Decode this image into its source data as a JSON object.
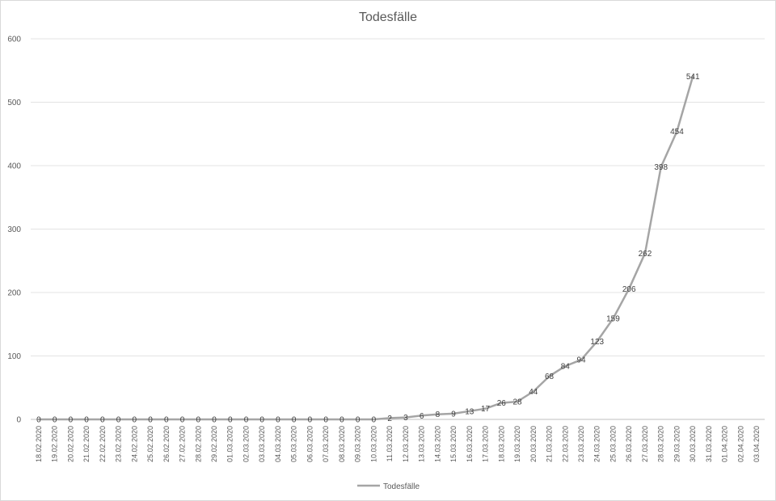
{
  "chart_data": {
    "type": "line",
    "title": "Todesfälle",
    "xlabel": "",
    "ylabel": "",
    "ylim": [
      0,
      600
    ],
    "yticks": [
      0,
      100,
      200,
      300,
      400,
      500,
      600
    ],
    "grid": true,
    "legend_position": "bottom",
    "categories": [
      "18.02.2020",
      "19.02.2020",
      "20.02.2020",
      "21.02.2020",
      "22.02.2020",
      "23.02.2020",
      "24.02.2020",
      "25.02.2020",
      "26.02.2020",
      "27.02.2020",
      "28.02.2020",
      "29.02.2020",
      "01.03.2020",
      "02.03.2020",
      "03.03.2020",
      "04.03.2020",
      "05.03.2020",
      "06.03.2020",
      "07.03.2020",
      "08.03.2020",
      "09.03.2020",
      "10.03.2020",
      "11.03.2020",
      "12.03.2020",
      "13.03.2020",
      "14.03.2020",
      "15.03.2020",
      "16.03.2020",
      "17.03.2020",
      "18.03.2020",
      "19.03.2020",
      "20.03.2020",
      "21.03.2020",
      "22.03.2020",
      "23.03.2020",
      "24.03.2020",
      "25.03.2020",
      "26.03.2020",
      "27.03.2020",
      "28.03.2020",
      "29.03.2020",
      "30.03.2020",
      "31.03.2020",
      "01.04.2020",
      "02.04.2020",
      "03.04.2020"
    ],
    "series": [
      {
        "name": "Todesfälle",
        "color": "#a5a5a5",
        "values": [
          0,
          0,
          0,
          0,
          0,
          0,
          0,
          0,
          0,
          0,
          0,
          0,
          0,
          0,
          0,
          0,
          0,
          0,
          0,
          0,
          0,
          0,
          2,
          3,
          6,
          8,
          9,
          13,
          17,
          26,
          28,
          44,
          68,
          84,
          94,
          123,
          159,
          206,
          262,
          398,
          454,
          541,
          null,
          null,
          null,
          null
        ]
      }
    ]
  }
}
